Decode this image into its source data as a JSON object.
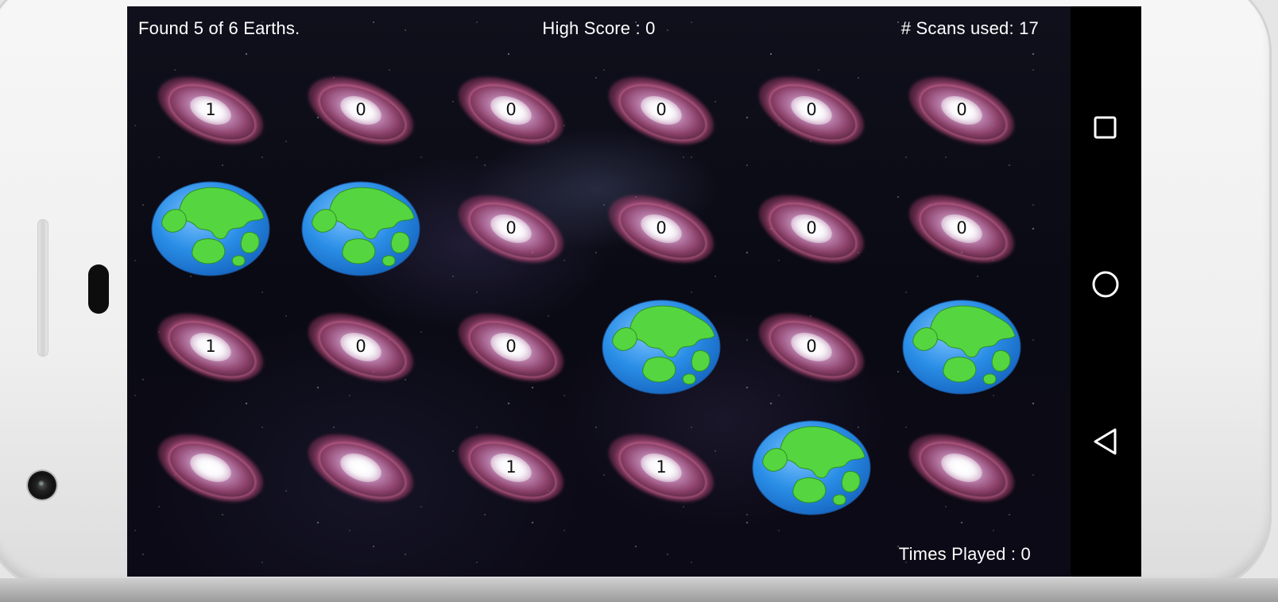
{
  "hud": {
    "found": "Found 5 of 6 Earths.",
    "high_score": "High Score : 0",
    "scans": "# Scans used: 17",
    "times_played": "Times Played : 0"
  },
  "grid": {
    "rows": [
      [
        {
          "type": "galaxy",
          "value": "1"
        },
        {
          "type": "galaxy",
          "value": "0"
        },
        {
          "type": "galaxy",
          "value": "0"
        },
        {
          "type": "galaxy",
          "value": "0"
        },
        {
          "type": "galaxy",
          "value": "0"
        },
        {
          "type": "galaxy",
          "value": "0"
        }
      ],
      [
        {
          "type": "earth",
          "value": ""
        },
        {
          "type": "earth",
          "value": ""
        },
        {
          "type": "galaxy",
          "value": "0"
        },
        {
          "type": "galaxy",
          "value": "0"
        },
        {
          "type": "galaxy",
          "value": "0"
        },
        {
          "type": "galaxy",
          "value": "0"
        }
      ],
      [
        {
          "type": "galaxy",
          "value": "1"
        },
        {
          "type": "galaxy",
          "value": "0"
        },
        {
          "type": "galaxy",
          "value": "0"
        },
        {
          "type": "earth",
          "value": ""
        },
        {
          "type": "galaxy",
          "value": "0"
        },
        {
          "type": "earth",
          "value": ""
        }
      ],
      [
        {
          "type": "galaxy",
          "value": ""
        },
        {
          "type": "galaxy",
          "value": ""
        },
        {
          "type": "galaxy",
          "value": "1"
        },
        {
          "type": "galaxy",
          "value": "1"
        },
        {
          "type": "earth",
          "value": ""
        },
        {
          "type": "galaxy",
          "value": ""
        }
      ]
    ]
  },
  "nav": {
    "recents_icon": "square-recents-icon",
    "home_icon": "circle-home-icon",
    "back_icon": "triangle-back-icon"
  },
  "colors": {
    "background": "#000000",
    "hud_text": "#ffffff",
    "earth_ocean": "#2a8ee6",
    "earth_land": "#55d640",
    "galaxy_arm": "#c05a8a"
  }
}
